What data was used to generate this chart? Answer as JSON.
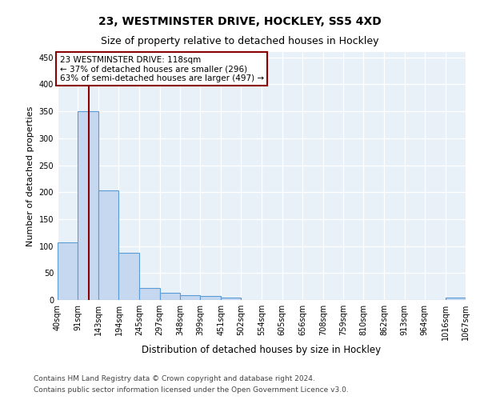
{
  "title1": "23, WESTMINSTER DRIVE, HOCKLEY, SS5 4XD",
  "title2": "Size of property relative to detached houses in Hockley",
  "xlabel": "Distribution of detached houses by size in Hockley",
  "ylabel": "Number of detached properties",
  "footer1": "Contains HM Land Registry data © Crown copyright and database right 2024.",
  "footer2": "Contains public sector information licensed under the Open Government Licence v3.0.",
  "bin_edges": [
    40,
    91,
    143,
    194,
    245,
    297,
    348,
    399,
    451,
    502,
    554,
    605,
    656,
    708,
    759,
    810,
    862,
    913,
    964,
    1016,
    1067
  ],
  "bin_labels": [
    "40sqm",
    "91sqm",
    "143sqm",
    "194sqm",
    "245sqm",
    "297sqm",
    "348sqm",
    "399sqm",
    "451sqm",
    "502sqm",
    "554sqm",
    "605sqm",
    "656sqm",
    "708sqm",
    "759sqm",
    "810sqm",
    "862sqm",
    "913sqm",
    "964sqm",
    "1016sqm",
    "1067sqm"
  ],
  "bar_heights": [
    107,
    350,
    203,
    88,
    22,
    14,
    9,
    8,
    5,
    0,
    0,
    0,
    0,
    0,
    0,
    0,
    0,
    0,
    0,
    4
  ],
  "bar_color": "#c5d8f0",
  "bar_edge_color": "#5b9bd5",
  "property_size": 118,
  "vline_color": "#8b0000",
  "annotation_line1": "23 WESTMINSTER DRIVE: 118sqm",
  "annotation_line2": "← 37% of detached houses are smaller (296)",
  "annotation_line3": "63% of semi-detached houses are larger (497) →",
  "annotation_box_color": "white",
  "annotation_box_edge_color": "#8b0000",
  "ylim": [
    0,
    460
  ],
  "background_color": "#e8f0f8",
  "grid_color": "white",
  "title1_fontsize": 10,
  "title2_fontsize": 9,
  "ylabel_fontsize": 8,
  "xlabel_fontsize": 8.5,
  "tick_fontsize": 7,
  "annotation_fontsize": 7.5,
  "footer_fontsize": 6.5
}
